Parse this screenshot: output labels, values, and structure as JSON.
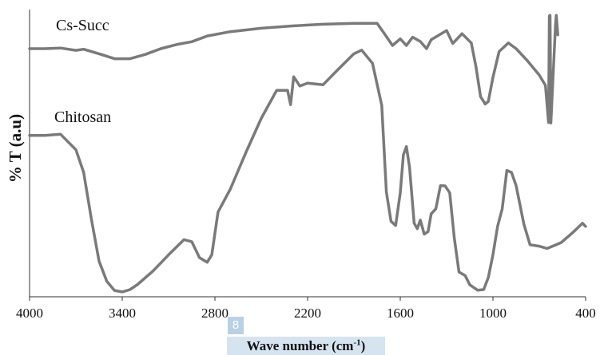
{
  "chart_data": {
    "type": "line",
    "title": "",
    "xlabel_main": "Wave number (cm",
    "xlabel_sup": "-1",
    "xlabel_tail": ")",
    "ylabel": "% T (a.u)",
    "x_reversed": true,
    "xlim": [
      4000,
      400
    ],
    "xticks": [
      "4000",
      "3400",
      "2800",
      "2200",
      "1600",
      "1000",
      "400"
    ],
    "xtick_values": [
      4000,
      3400,
      2800,
      2200,
      1600,
      1000,
      400
    ],
    "ylim": [
      0,
      100
    ],
    "grid": false,
    "line_color": "#7a7a7a",
    "series": [
      {
        "name": "Cs-Succ",
        "points": [
          [
            4000,
            86.4
          ],
          [
            3900,
            86.4
          ],
          [
            3800,
            86.6
          ],
          [
            3700,
            85.8
          ],
          [
            3650,
            86.2
          ],
          [
            3550,
            84.6
          ],
          [
            3450,
            82.9
          ],
          [
            3350,
            82.9
          ],
          [
            3250,
            84.4
          ],
          [
            3150,
            86.4
          ],
          [
            3050,
            87.8
          ],
          [
            2950,
            88.8
          ],
          [
            2850,
            90.8
          ],
          [
            2700,
            92.3
          ],
          [
            2500,
            93.5
          ],
          [
            2300,
            94.3
          ],
          [
            2100,
            94.9
          ],
          [
            1900,
            95.2
          ],
          [
            1750,
            95.2
          ],
          [
            1700,
            91.4
          ],
          [
            1650,
            87.5
          ],
          [
            1600,
            89.8
          ],
          [
            1560,
            87.5
          ],
          [
            1520,
            90.4
          ],
          [
            1470,
            88.9
          ],
          [
            1430,
            86.4
          ],
          [
            1400,
            89.5
          ],
          [
            1300,
            92.7
          ],
          [
            1260,
            88.2
          ],
          [
            1200,
            91.6
          ],
          [
            1140,
            88.4
          ],
          [
            1110,
            80.2
          ],
          [
            1080,
            69.7
          ],
          [
            1050,
            67.1
          ],
          [
            1030,
            68.0
          ],
          [
            1000,
            76.4
          ],
          [
            960,
            85.4
          ],
          [
            900,
            88.4
          ],
          [
            850,
            86.4
          ],
          [
            780,
            82.4
          ],
          [
            700,
            77.2
          ],
          [
            660,
            73.6
          ],
          [
            640,
            60.7
          ],
          [
            635,
            97.8
          ],
          [
            630,
            98.0
          ],
          [
            625,
            60.5
          ],
          [
            595,
            94.6
          ],
          [
            590,
            98.0
          ],
          [
            580,
            91.2
          ]
        ]
      },
      {
        "name": "Chitosan",
        "points": [
          [
            4000,
            56.2
          ],
          [
            3900,
            56.2
          ],
          [
            3800,
            56.6
          ],
          [
            3700,
            51.2
          ],
          [
            3650,
            43.3
          ],
          [
            3600,
            27.2
          ],
          [
            3550,
            12.4
          ],
          [
            3500,
            5.4
          ],
          [
            3450,
            2.2
          ],
          [
            3400,
            1.7
          ],
          [
            3350,
            2.5
          ],
          [
            3300,
            4.3
          ],
          [
            3200,
            9.0
          ],
          [
            3100,
            14.6
          ],
          [
            3000,
            19.9
          ],
          [
            2950,
            19.2
          ],
          [
            2900,
            13.6
          ],
          [
            2850,
            12.0
          ],
          [
            2820,
            14.6
          ],
          [
            2780,
            29.5
          ],
          [
            2700,
            37.5
          ],
          [
            2600,
            50.2
          ],
          [
            2500,
            62.1
          ],
          [
            2400,
            71.9
          ],
          [
            2330,
            71.9
          ],
          [
            2310,
            66.9
          ],
          [
            2290,
            76.6
          ],
          [
            2250,
            73.4
          ],
          [
            2200,
            74.4
          ],
          [
            2100,
            73.8
          ],
          [
            2000,
            79.3
          ],
          [
            1900,
            84.6
          ],
          [
            1850,
            85.9
          ],
          [
            1780,
            81.3
          ],
          [
            1720,
            66.7
          ],
          [
            1690,
            36.5
          ],
          [
            1660,
            26.3
          ],
          [
            1630,
            24.8
          ],
          [
            1600,
            36.2
          ],
          [
            1580,
            49.4
          ],
          [
            1560,
            52.3
          ],
          [
            1540,
            45.1
          ],
          [
            1510,
            25.6
          ],
          [
            1490,
            23.7
          ],
          [
            1470,
            26.7
          ],
          [
            1445,
            21.8
          ],
          [
            1420,
            22.7
          ],
          [
            1400,
            28.9
          ],
          [
            1370,
            30.6
          ],
          [
            1340,
            38.7
          ],
          [
            1310,
            38.6
          ],
          [
            1280,
            36.2
          ],
          [
            1250,
            20.3
          ],
          [
            1220,
            8.6
          ],
          [
            1180,
            7.4
          ],
          [
            1150,
            4.2
          ],
          [
            1100,
            2.3
          ],
          [
            1060,
            2.5
          ],
          [
            1030,
            6.7
          ],
          [
            1000,
            14.6
          ],
          [
            970,
            24.5
          ],
          [
            940,
            30.6
          ],
          [
            910,
            44.0
          ],
          [
            880,
            43.3
          ],
          [
            850,
            38.7
          ],
          [
            800,
            25.3
          ],
          [
            760,
            18.1
          ],
          [
            700,
            17.6
          ],
          [
            650,
            16.8
          ],
          [
            560,
            18.8
          ],
          [
            480,
            22.5
          ],
          [
            420,
            25.6
          ],
          [
            400,
            24.5
          ]
        ]
      }
    ]
  },
  "badge_text": "8"
}
